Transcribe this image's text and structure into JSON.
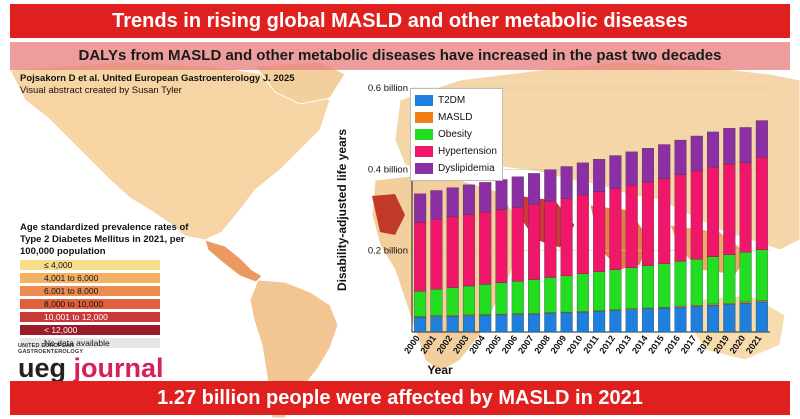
{
  "header": {
    "title": "Trends in rising global MASLD and other metabolic diseases",
    "subtitle": "DALYs from MASLD and other metabolic diseases have increased in the past two decades"
  },
  "citation": {
    "line1": "Pojsakorn D et al. United European Gastroenterology J. 2025",
    "line2": "Visual abstract created by Susan Tyler"
  },
  "prevalence_legend": {
    "title": "Age standardized prevalence rates of Type 2 Diabetes Mellitus in 2021, per 100,000 population",
    "items": [
      {
        "label": "≤ 4,000",
        "color": "#f6dd8a"
      },
      {
        "label": "4,001 to 6,000",
        "color": "#f3b163"
      },
      {
        "label": "6,001 to 8,000",
        "color": "#ec8a4f"
      },
      {
        "label": "8,000 to 10,000",
        "color": "#e05f3c"
      },
      {
        "label": "10,001 to 12,000",
        "color": "#c83a3a"
      },
      {
        "label": "< 12,000",
        "color": "#9c1b2b"
      },
      {
        "label": "No data available",
        "color": "#e6e6e6"
      }
    ]
  },
  "logo": {
    "small_line1": "UNITED EUROPEAN",
    "small_line2": "GASTROENTEROLOGY",
    "word1": "ueg",
    "word2": "journal"
  },
  "footer": {
    "text": "1.27 billion people were affected by MASLD in 2021"
  },
  "colors": {
    "title_bar": "#e0201f",
    "map_land": "#f6ddb8",
    "map_ocean": "#ffffff"
  },
  "chart_data": {
    "type": "bar",
    "stacked": true,
    "title": "",
    "xlabel": "Year",
    "ylabel": "Disability-adjusted life years",
    "ylim": [
      0,
      0.6
    ],
    "yticks": [
      0,
      0.2,
      0.4,
      0.6
    ],
    "ytick_labels": [
      "",
      "0.2 billion",
      "0.4 billion",
      "0.6 billion"
    ],
    "categories": [
      "2000",
      "2001",
      "2002",
      "2003",
      "2004",
      "2005",
      "2006",
      "2007",
      "2008",
      "2009",
      "2010",
      "2011",
      "2012",
      "2013",
      "2014",
      "2015",
      "2016",
      "2017",
      "2018",
      "2019",
      "2020",
      "2021"
    ],
    "series": [
      {
        "name": "T2DM",
        "color": "#1e7fdc",
        "values": [
          0.036,
          0.038,
          0.039,
          0.04,
          0.041,
          0.042,
          0.043,
          0.044,
          0.046,
          0.047,
          0.049,
          0.051,
          0.053,
          0.055,
          0.057,
          0.059,
          0.061,
          0.063,
          0.066,
          0.068,
          0.071,
          0.074
        ]
      },
      {
        "name": "MASLD",
        "color": "#f07f18",
        "values": [
          0.002,
          0.002,
          0.002,
          0.002,
          0.002,
          0.002,
          0.002,
          0.002,
          0.002,
          0.002,
          0.002,
          0.002,
          0.002,
          0.002,
          0.002,
          0.002,
          0.003,
          0.003,
          0.003,
          0.003,
          0.003,
          0.003
        ]
      },
      {
        "name": "Obesity",
        "color": "#22dd22",
        "values": [
          0.062,
          0.065,
          0.068,
          0.071,
          0.074,
          0.077,
          0.08,
          0.083,
          0.086,
          0.089,
          0.092,
          0.095,
          0.098,
          0.101,
          0.104,
          0.107,
          0.11,
          0.113,
          0.116,
          0.119,
          0.122,
          0.125
        ]
      },
      {
        "name": "Hypertension",
        "color": "#f0176a",
        "values": [
          0.17,
          0.172,
          0.174,
          0.176,
          0.178,
          0.18,
          0.182,
          0.185,
          0.188,
          0.191,
          0.194,
          0.197,
          0.2,
          0.203,
          0.206,
          0.209,
          0.213,
          0.217,
          0.22,
          0.223,
          0.22,
          0.228
        ]
      },
      {
        "name": "Dyslipidemia",
        "color": "#8b2fa4",
        "values": [
          0.07,
          0.071,
          0.072,
          0.073,
          0.073,
          0.074,
          0.075,
          0.076,
          0.077,
          0.078,
          0.079,
          0.08,
          0.081,
          0.082,
          0.083,
          0.084,
          0.085,
          0.086,
          0.087,
          0.088,
          0.087,
          0.09
        ]
      }
    ],
    "legend_position": "top-left"
  }
}
